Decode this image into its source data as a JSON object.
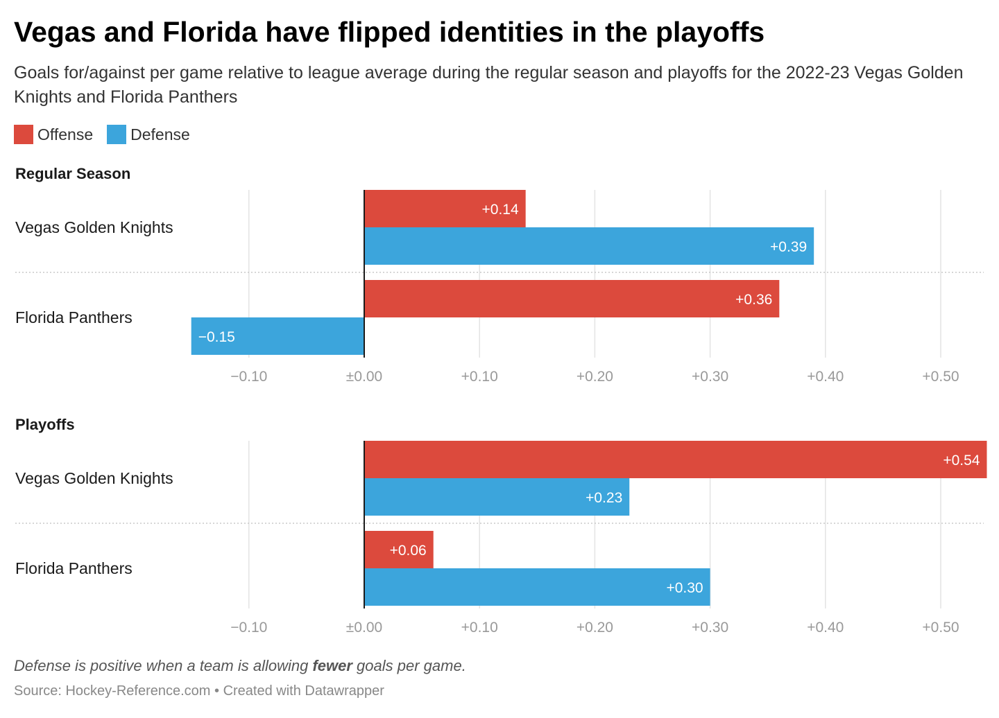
{
  "title": "Vegas and Florida have flipped identities in the playoffs",
  "subtitle": "Goals for/against per game relative to league average during the regular season and playoffs for the 2022-23 Vegas Golden Knights and Florida Panthers",
  "note": {
    "before": "Defense is positive when a team is allowing ",
    "emphasis": "fewer",
    "after": " goals per game."
  },
  "source": "Source: Hockey-Reference.com • Created with Datawrapper",
  "colors": {
    "offense": "#dc4a3d",
    "defense": "#3ca5dc"
  },
  "chart_data": {
    "type": "bar",
    "orientation": "horizontal",
    "legend": {
      "position": "top-left",
      "entries": [
        "Offense",
        "Defense"
      ]
    },
    "xlim": [
      -0.15,
      0.54
    ],
    "x_ticks": [
      {
        "value": -0.1,
        "label": "−0.10"
      },
      {
        "value": 0.0,
        "label": "±0.00"
      },
      {
        "value": 0.1,
        "label": "+0.10"
      },
      {
        "value": 0.2,
        "label": "+0.20"
      },
      {
        "value": 0.3,
        "label": "+0.30"
      },
      {
        "value": 0.4,
        "label": "+0.40"
      },
      {
        "value": 0.5,
        "label": "+0.50"
      }
    ],
    "grid": true,
    "panels": [
      {
        "title": "Regular Season",
        "categories": [
          "Vegas Golden Knights",
          "Florida Panthers"
        ],
        "series": [
          {
            "name": "Offense",
            "values": [
              0.14,
              0.36
            ],
            "labels": [
              "+0.14",
              "+0.36"
            ]
          },
          {
            "name": "Defense",
            "values": [
              0.39,
              -0.15
            ],
            "labels": [
              "+0.39",
              "−0.15"
            ]
          }
        ]
      },
      {
        "title": "Playoffs",
        "categories": [
          "Vegas Golden Knights",
          "Florida Panthers"
        ],
        "series": [
          {
            "name": "Offense",
            "values": [
              0.54,
              0.06
            ],
            "labels": [
              "+0.54",
              "+0.06"
            ]
          },
          {
            "name": "Defense",
            "values": [
              0.23,
              0.3
            ],
            "labels": [
              "+0.23",
              "+0.30"
            ]
          }
        ]
      }
    ]
  }
}
